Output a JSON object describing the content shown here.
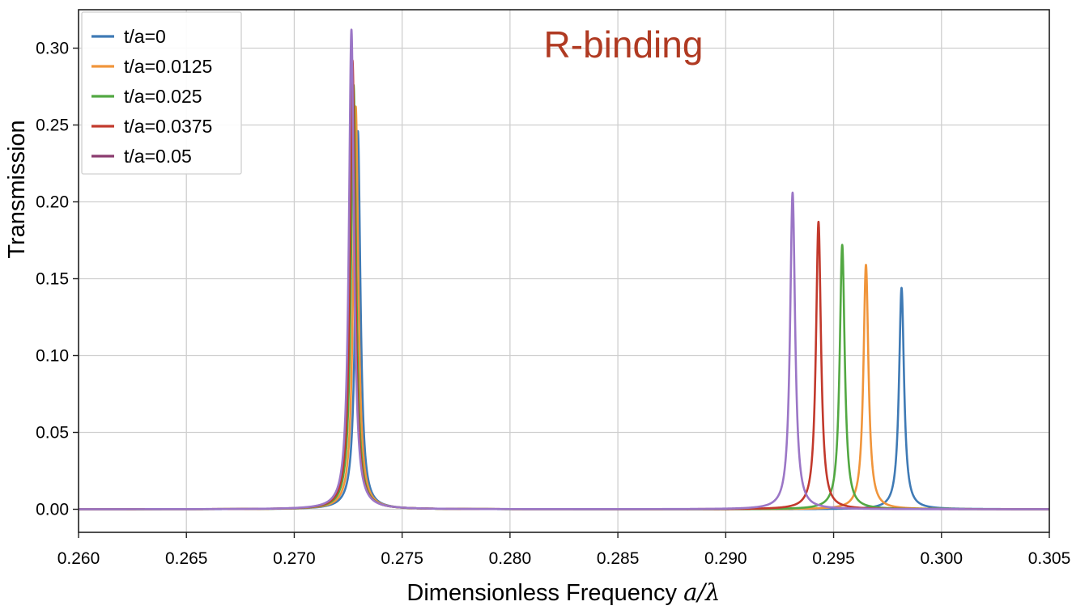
{
  "chart_data": {
    "type": "line",
    "title": "",
    "xlabel": "Dimensionless Frequency",
    "xlabel_math": "a/λ",
    "ylabel": "Transmission",
    "xlim": [
      0.26,
      0.305
    ],
    "ylim": [
      -0.015,
      0.325
    ],
    "xticks": [
      0.26,
      0.265,
      0.27,
      0.275,
      0.28,
      0.285,
      0.29,
      0.295,
      0.3,
      0.305
    ],
    "xtick_labels": [
      "0.260",
      "0.265",
      "0.270",
      "0.275",
      "0.280",
      "0.285",
      "0.290",
      "0.295",
      "0.300",
      "0.305"
    ],
    "yticks": [
      0,
      0.05,
      0.1,
      0.15,
      0.2,
      0.25,
      0.3
    ],
    "ytick_labels": [
      "0.00",
      "0.05",
      "0.10",
      "0.15",
      "0.20",
      "0.25",
      "0.30"
    ],
    "grid": true,
    "legend_position": "top-left",
    "annotation": {
      "text": "R-binding",
      "color": "#b03a22"
    },
    "series": [
      {
        "name": "t/a=0",
        "color": "#3f7ab5",
        "peaks": [
          {
            "x": 0.27295,
            "y": 0.246,
            "width": 0.00014
          },
          {
            "x": 0.29815,
            "y": 0.144,
            "width": 0.00014
          }
        ]
      },
      {
        "name": "t/a=0.0125",
        "color": "#f0953b",
        "peaks": [
          {
            "x": 0.27285,
            "y": 0.262,
            "width": 0.00014
          },
          {
            "x": 0.2965,
            "y": 0.159,
            "width": 0.00014
          }
        ]
      },
      {
        "name": "t/a=0.025",
        "color": "#52a842",
        "peaks": [
          {
            "x": 0.27275,
            "y": 0.276,
            "width": 0.00014
          },
          {
            "x": 0.2954,
            "y": 0.172,
            "width": 0.00014
          }
        ]
      },
      {
        "name": "t/a=0.0375",
        "color": "#c2392c",
        "peaks": [
          {
            "x": 0.2727,
            "y": 0.292,
            "width": 0.00014
          },
          {
            "x": 0.2943,
            "y": 0.187,
            "width": 0.00014
          }
        ]
      },
      {
        "name": "t/a=0.05",
        "color": "#9b76c6",
        "legend_color": "#8a3a6e",
        "peaks": [
          {
            "x": 0.27265,
            "y": 0.312,
            "width": 0.00014
          },
          {
            "x": 0.2931,
            "y": 0.206,
            "width": 0.00014
          }
        ]
      }
    ]
  }
}
